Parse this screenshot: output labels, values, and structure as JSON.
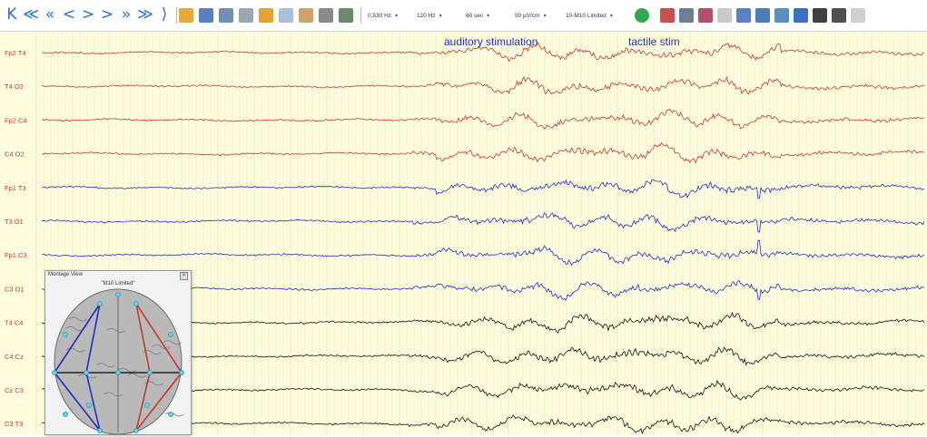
{
  "toolbar": {
    "nav_buttons": [
      {
        "name": "first-page-icon",
        "glyph": "K"
      },
      {
        "name": "page-tool-icon",
        "glyph": "≪"
      },
      {
        "name": "prev-double-icon",
        "glyph": "«"
      },
      {
        "name": "prev-icon",
        "glyph": "<"
      },
      {
        "name": "prev-small-icon",
        "glyph": ">"
      },
      {
        "name": "next-icon",
        "glyph": ">"
      },
      {
        "name": "next-double-icon",
        "glyph": "»"
      },
      {
        "name": "next-tool-icon",
        "glyph": "≫"
      },
      {
        "name": "last-page-icon",
        "glyph": "⟩"
      }
    ],
    "tool_icons_a": [
      {
        "name": "open-folder-icon",
        "color": "#e8a93a"
      },
      {
        "name": "save-disk-icon",
        "color": "#5a7fc0"
      },
      {
        "name": "people-icon",
        "color": "#6f8fb5"
      },
      {
        "name": "person-icon",
        "color": "#9aa7b5"
      },
      {
        "name": "scissors-icon",
        "color": "#e1a23a"
      },
      {
        "name": "copy-icon",
        "color": "#a8c0e0"
      },
      {
        "name": "paste-icon",
        "color": "#cfa26a"
      },
      {
        "name": "montage-grid-icon",
        "color": "#8a8a8a"
      },
      {
        "name": "photo-icon",
        "color": "#6a8a6a"
      }
    ],
    "selects": {
      "low_filter": "0.530 Hz",
      "high_filter": "120 Hz",
      "timebase": "60 sec",
      "sensitivity": "50 µV/cm",
      "montage": "10-M10 Limited"
    },
    "tool_icons_b": [
      {
        "name": "no-notch-icon",
        "color": "#2fa84f"
      },
      {
        "name": "spike-icon",
        "color": "#c8504e"
      },
      {
        "name": "head-icon",
        "color": "#6d7f96"
      },
      {
        "name": "wave-analysis-icon",
        "color": "#b0506a"
      },
      {
        "name": "marker-pen-icon",
        "color": "#c9c9c9"
      },
      {
        "name": "ruler-icon",
        "color": "#5b7fc0"
      },
      {
        "name": "electrode-map-icon",
        "color": "#4a7fb5"
      },
      {
        "name": "person-info-icon",
        "color": "#5b8fc0"
      },
      {
        "name": "book-icon",
        "color": "#3a70c0"
      },
      {
        "name": "dark-page-icon",
        "color": "#404040"
      },
      {
        "name": "dark-page-2-icon",
        "color": "#505050"
      },
      {
        "name": "hand-icon",
        "color": "#cfcfcf"
      }
    ]
  },
  "eeg": {
    "channels": [
      {
        "label": "Fp2 T4",
        "color": "#c0392b"
      },
      {
        "label": "T4 O2",
        "color": "#c0392b"
      },
      {
        "label": "Fp2 C4",
        "color": "#c0392b"
      },
      {
        "label": "C4 O2",
        "color": "#c0392b"
      },
      {
        "label": "Fp1 T3",
        "color": "#1f2dbf"
      },
      {
        "label": "T3 O1",
        "color": "#1f2dbf"
      },
      {
        "label": "Fp1 C3",
        "color": "#1f2dbf"
      },
      {
        "label": "C3 O1",
        "color": "#1f2dbf"
      },
      {
        "label": "T4 C4",
        "color": "#111111"
      },
      {
        "label": "C4 Cz",
        "color": "#111111"
      },
      {
        "label": "Cz C3",
        "color": "#111111"
      },
      {
        "label": "C3 T3",
        "color": "#111111"
      }
    ],
    "annotations": [
      "auditory stimulation",
      "tactile stim"
    ],
    "background_color": "#fffde0",
    "grid_color": "#ebe7b8",
    "label_color": "#c0392b",
    "annotation_color": "#1f2dbf"
  },
  "montage_view": {
    "title": "Montage View",
    "name": "\"M10 Limited\""
  }
}
